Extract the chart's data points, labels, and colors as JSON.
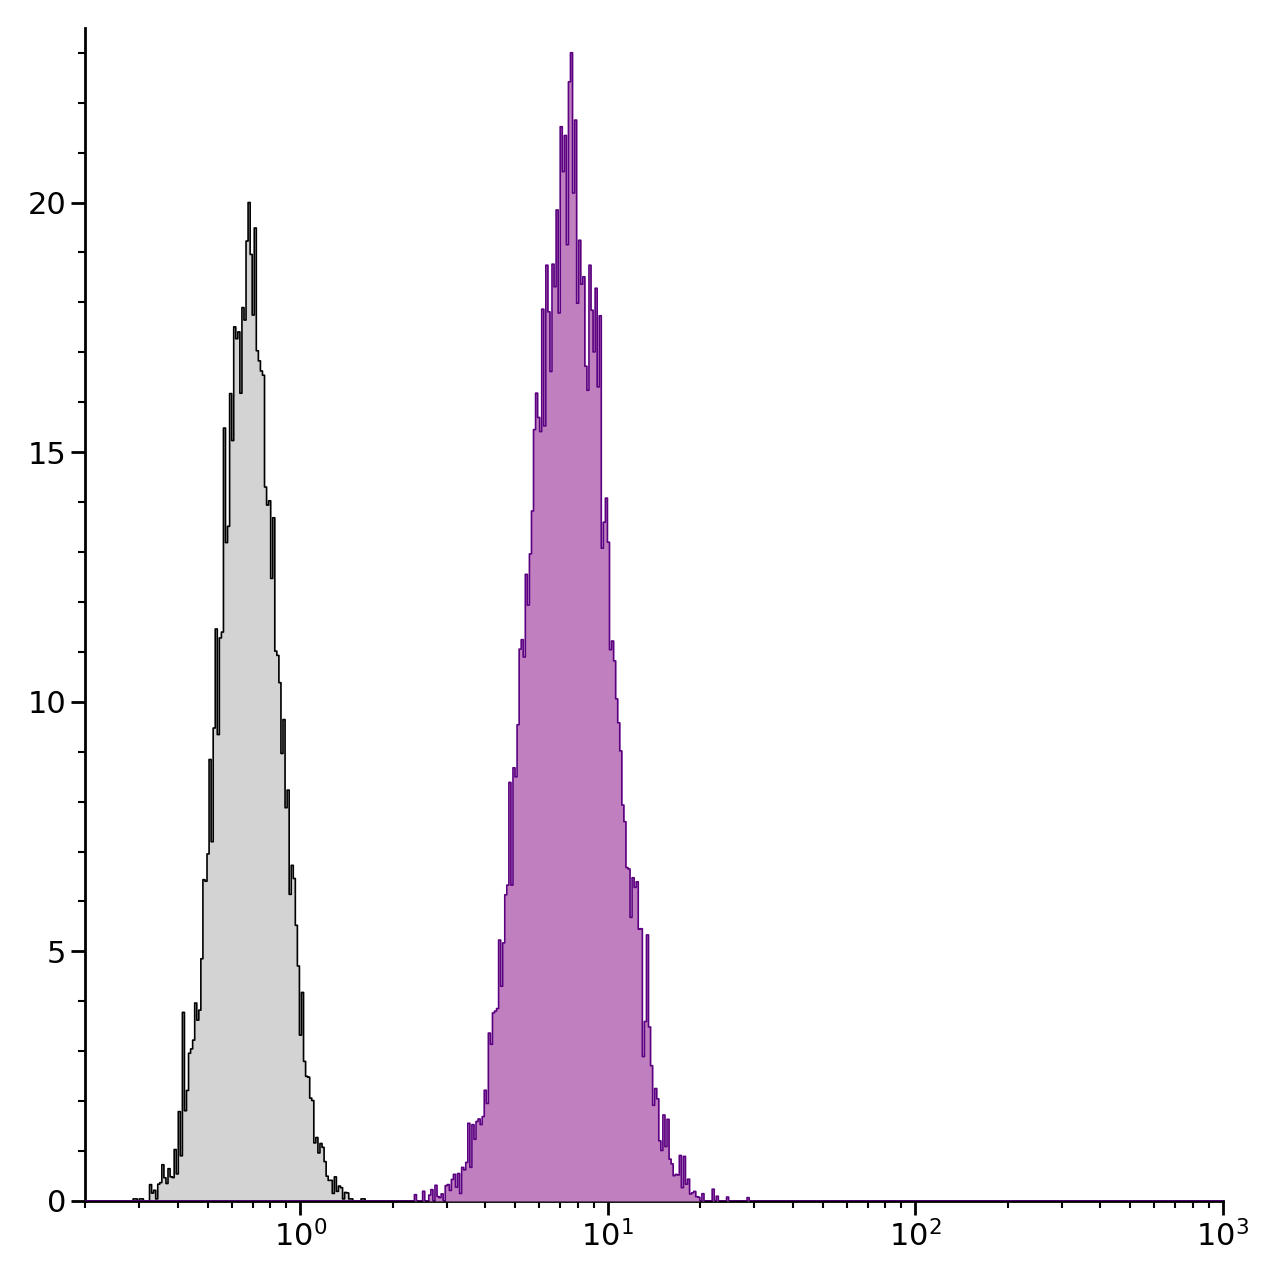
{
  "xlim": [
    0.2,
    1000
  ],
  "ylim": [
    0,
    23.5
  ],
  "yticks": [
    0,
    5,
    10,
    15,
    20
  ],
  "background_color": "#ffffff",
  "hist1_color_edge": "#000000",
  "hist1_color_fill": "#d3d3d3",
  "hist2_color_edge": "#5b0080",
  "hist2_color_fill": "#c080c0",
  "hist1_peak_x": 0.68,
  "hist1_peak_y": 20.0,
  "hist2_peak_x": 7.5,
  "hist2_peak_y": 23.0,
  "hist1_sigma": 0.22,
  "hist2_sigma": 0.3,
  "tick_fontsize": 22,
  "linewidth": 1.2,
  "n_bins": 600,
  "n_points": 15000,
  "noise_seed1": 77,
  "noise_seed2": 88,
  "noise_scale": 0.55
}
